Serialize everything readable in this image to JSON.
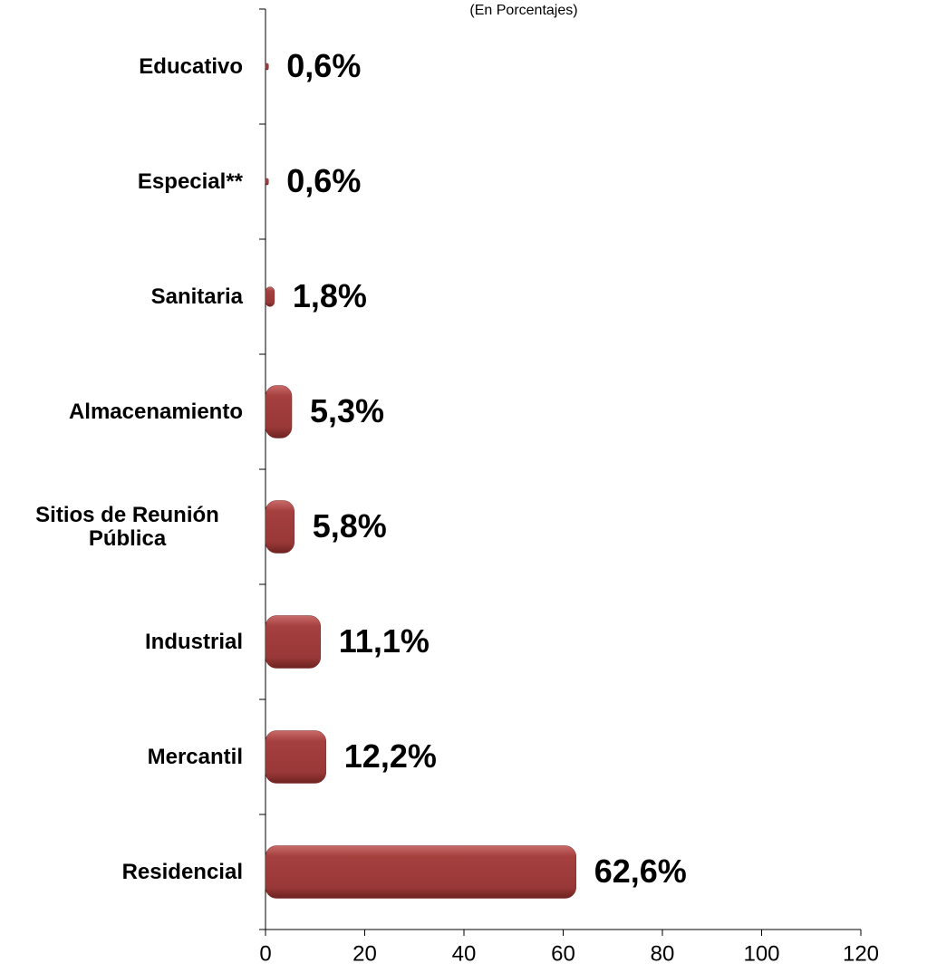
{
  "chart_data": {
    "type": "bar",
    "orientation": "horizontal",
    "subtitle": "(En Porcentajes)",
    "categories": [
      "Educativo",
      "Especial**",
      "Sanitaria",
      "Almacenamiento",
      "Sitios de Reunión Pública",
      "Industrial",
      "Mercantil",
      "Residencial"
    ],
    "values": [
      0.6,
      0.6,
      1.8,
      5.3,
      5.8,
      11.1,
      12.2,
      62.6
    ],
    "value_labels": [
      "0,6%",
      "0,6%",
      "1,8%",
      "5,3%",
      "5,8%",
      "11,1%",
      "12,2%",
      "62,6%"
    ],
    "color": "#a0403f",
    "xlim": [
      0,
      120
    ],
    "xticks": [
      0,
      20,
      40,
      60,
      80,
      100,
      120
    ],
    "grid": false
  }
}
